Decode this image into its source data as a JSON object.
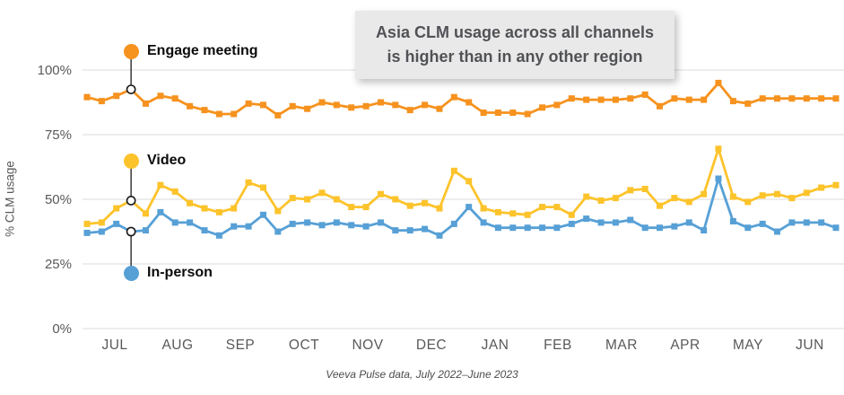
{
  "chart_data": {
    "type": "line",
    "x_unit": "week",
    "categories_months": [
      "JUL",
      "AUG",
      "SEP",
      "OCT",
      "NOV",
      "DEC",
      "JAN",
      "FEB",
      "MAR",
      "APR",
      "MAY",
      "JUN"
    ],
    "yticks": [
      "100%",
      "75%",
      "50%",
      "25%",
      "0%"
    ],
    "ytick_values": [
      100,
      75,
      50,
      25,
      0
    ],
    "ylim": [
      0,
      112
    ],
    "ylabel": "% CLM usage",
    "grid": "horizontal",
    "legend_position": "left-inline-callouts",
    "annotated_week_index": 3,
    "series": [
      {
        "name": "Engage meeting",
        "color": "#F6921E",
        "values": [
          89.5,
          88,
          90,
          92.5,
          87,
          90,
          89,
          86,
          84.5,
          83,
          83,
          87,
          86.5,
          82.5,
          86,
          85,
          87.5,
          86.5,
          85.5,
          86,
          87.5,
          86.5,
          84.5,
          86.5,
          85,
          89.5,
          87.5,
          83.5,
          83.5,
          83.5,
          83,
          85.5,
          86.5,
          89,
          88.5,
          88.5,
          88.5,
          89,
          90.5,
          86,
          89,
          88.5,
          88.5,
          95,
          88,
          87,
          89,
          89,
          89,
          89,
          89,
          89
        ]
      },
      {
        "name": "Video",
        "color": "#FCC32B",
        "values": [
          40.5,
          41,
          46.5,
          49.5,
          44.5,
          55.5,
          53,
          48.5,
          46.5,
          45,
          46.5,
          56.5,
          54.5,
          45.5,
          50.5,
          50,
          52.5,
          50,
          47,
          47,
          52,
          50,
          47.5,
          48.5,
          46.5,
          61,
          57,
          46.5,
          45,
          44.5,
          44,
          47,
          47,
          44,
          51,
          49.5,
          50.5,
          53.5,
          54,
          47.5,
          50.5,
          49,
          52,
          69.5,
          51,
          49,
          51.5,
          52,
          50.5,
          52.5,
          54.5,
          55.5
        ]
      },
      {
        "name": "In-person",
        "color": "#57A0D6",
        "values": [
          37,
          37.5,
          40.5,
          37.5,
          38,
          45,
          41,
          41,
          38,
          36,
          39.5,
          39.5,
          44,
          37.5,
          40.5,
          41,
          40,
          41,
          40,
          39.5,
          41,
          38,
          38,
          38.5,
          36,
          40.5,
          47,
          41,
          39,
          39,
          39,
          39,
          39,
          40.5,
          42.5,
          41,
          41,
          42,
          39,
          39,
          39.5,
          41,
          38,
          58,
          41.5,
          39,
          40.5,
          37.5,
          41,
          41,
          41,
          39
        ]
      }
    ],
    "footnote": "Veeva Pulse data, July 2022–June 2023"
  },
  "annotation": {
    "line1": "Asia CLM usage across all channels",
    "line2": "is higher than in any other region",
    "bg_color": "#E9E9E9",
    "text_color": "#515256"
  },
  "colors": {
    "gridline": "#DBDBDB",
    "axis_text": "#58595B",
    "connector": "#1a1a1a"
  }
}
